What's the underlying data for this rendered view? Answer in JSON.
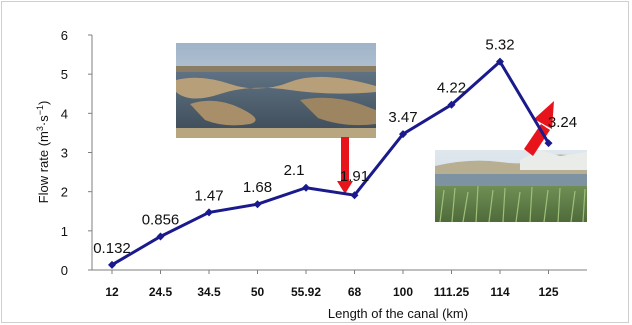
{
  "chart_data": {
    "type": "line",
    "title": "",
    "xlabel": "Length of the canal (km)",
    "ylabel_main": "Flow rate (m",
    "ylabel_sup1": "3",
    "ylabel_mid": "·s",
    "ylabel_sup2": "−1",
    "ylabel_end": ")",
    "categories": [
      "12",
      "24.5",
      "34.5",
      "50",
      "55.92",
      "68",
      "100",
      "111.25",
      "114",
      "125"
    ],
    "series": [
      {
        "values": [
          0.132,
          0.856,
          1.47,
          1.68,
          2.1,
          1.91,
          3.47,
          4.22,
          5.32,
          3.24
        ],
        "data_labels": [
          "0.132",
          "0.856",
          "1.47",
          "1.68",
          "2.1",
          "1.91",
          "3.47",
          "4.22",
          "5.32",
          "3.24"
        ],
        "color": "#1a1a8c"
      }
    ],
    "ylim": [
      0,
      6
    ],
    "yticks": [
      0,
      1,
      2,
      3,
      4,
      5,
      6
    ],
    "grid": false,
    "legend": "none",
    "colors": {
      "line": "#1a1a8c",
      "arrow": "#e8141b",
      "axis": "#7f7f7f"
    },
    "photos": [
      {
        "subject": "shallow-water-marsh-photo"
      },
      {
        "subject": "reed-pond-photo"
      }
    ]
  }
}
